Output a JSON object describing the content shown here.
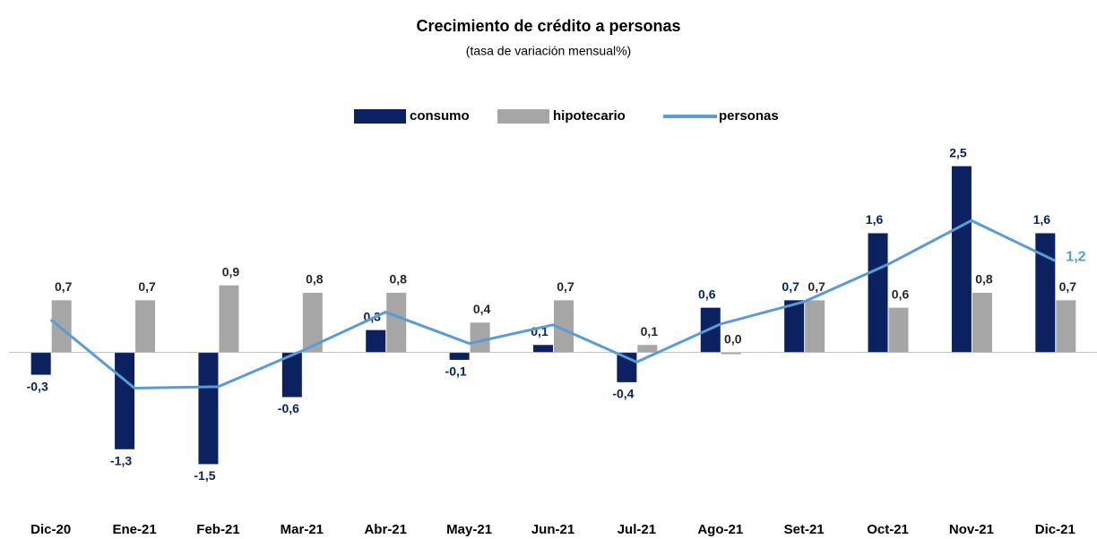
{
  "chart_data": {
    "type": "bar",
    "title": "Crecimiento de crédito a personas",
    "subtitle": "(tasa de variación mensual%)",
    "categories": [
      "Dic-20",
      "Ene-21",
      "Feb-21",
      "Mar-21",
      "Abr-21",
      "May-21",
      "Jun-21",
      "Jul-21",
      "Ago-21",
      "Set-21",
      "Oct-21",
      "Nov-21",
      "Dic-21"
    ],
    "ylim": [
      -2,
      3
    ],
    "legend": "top",
    "series": [
      {
        "name": "consumo",
        "type": "bar",
        "color": "#0b2160",
        "values": [
          -0.3,
          -1.3,
          -1.5,
          -0.6,
          0.3,
          -0.1,
          0.1,
          -0.4,
          0.6,
          0.7,
          1.6,
          2.5,
          1.6
        ],
        "value_labels": [
          "-0,3",
          "-1,3",
          "-1,5",
          "-0,6",
          "0,3",
          "-0,1",
          "0,1",
          "-0,4",
          "0,6",
          "0,7",
          "1,6",
          "2,5",
          "1,6"
        ]
      },
      {
        "name": "hipotecario",
        "type": "bar",
        "color": "#a6a6a6",
        "values": [
          0.7,
          0.7,
          0.9,
          0.8,
          0.8,
          0.4,
          0.7,
          0.1,
          0.0,
          0.7,
          0.6,
          0.8,
          0.7
        ],
        "value_labels": [
          "0,7",
          "0,7",
          "0,9",
          "0,8",
          "0,8",
          "0,4",
          "0,7",
          "0,1",
          "0,0",
          "0,7",
          "0,6",
          "0,8",
          "0,7"
        ]
      },
      {
        "name": "personas",
        "type": "line",
        "color": "#5b9bd5",
        "values": [
          0.44,
          -0.48,
          -0.46,
          0.02,
          0.54,
          0.12,
          0.37,
          -0.13,
          0.38,
          0.68,
          1.18,
          1.77,
          1.23
        ],
        "value_labels": [
          null,
          null,
          null,
          null,
          null,
          null,
          null,
          null,
          null,
          null,
          null,
          null,
          "1,2"
        ]
      }
    ]
  }
}
